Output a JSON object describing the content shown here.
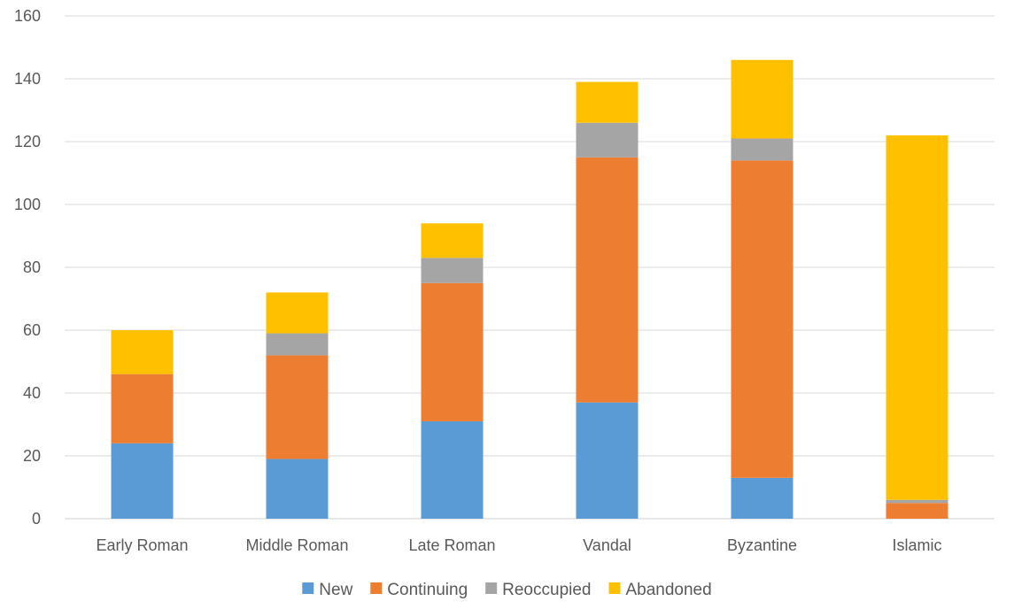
{
  "chart_data": {
    "type": "bar",
    "stacked": true,
    "categories": [
      "Early Roman",
      "Middle Roman",
      "Late Roman",
      "Vandal",
      "Byzantine",
      "Islamic"
    ],
    "series": [
      {
        "name": "New",
        "color": "#5B9BD5",
        "values": [
          24,
          19,
          31,
          37,
          13,
          0
        ]
      },
      {
        "name": "Continuing",
        "color": "#ED7D31",
        "values": [
          22,
          33,
          44,
          78,
          101,
          5
        ]
      },
      {
        "name": "Reoccupied",
        "color": "#A5A5A5",
        "values": [
          0,
          7,
          8,
          11,
          7,
          1
        ]
      },
      {
        "name": "Abandoned",
        "color": "#FFC000",
        "values": [
          14,
          13,
          11,
          13,
          25,
          116
        ]
      }
    ],
    "title": "",
    "xlabel": "",
    "ylabel": "",
    "ylim": [
      0,
      160
    ],
    "yticks": [
      0,
      20,
      40,
      60,
      80,
      100,
      120,
      140,
      160
    ],
    "grid": true,
    "legend_position": "bottom"
  }
}
